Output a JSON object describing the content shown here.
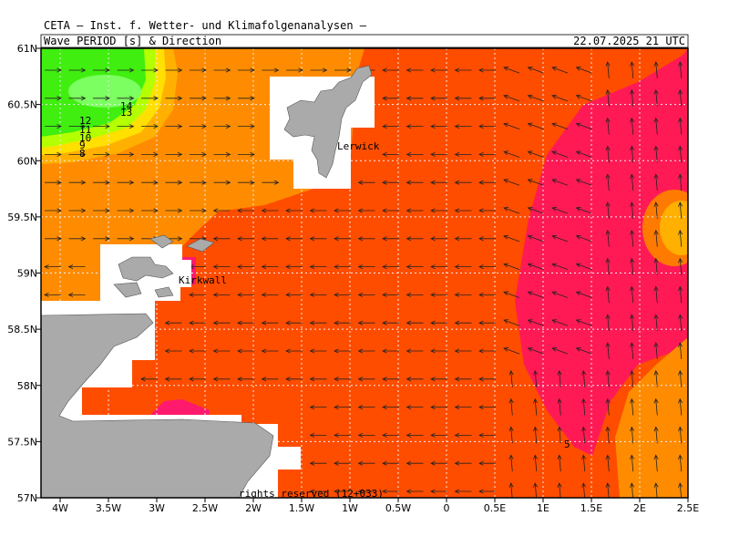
{
  "header": {
    "title": "CETA — Inst. f. Wetter- und Klimafolgenanalysen —",
    "subtitle": "Wave PERIOD [s] & Direction",
    "date": "22.07.2025 21 UTC"
  },
  "axes": {
    "lat_labels": [
      "61N",
      "60.5N",
      "60N",
      "59.5N",
      "59N",
      "58.5N",
      "58N",
      "57.5N",
      "57N"
    ],
    "lon_labels": [
      "4W",
      "3.5W",
      "3W",
      "2.5W",
      "2W",
      "1.5W",
      "1W",
      "0.5W",
      "0",
      "0.5E",
      "1E",
      "1.5E",
      "2E",
      "2.5E"
    ]
  },
  "contour_labels": [
    "14",
    "13",
    "12",
    "11",
    "10",
    "9",
    "8",
    "5"
  ],
  "places": [
    "Lerwick",
    "Kirkwall"
  ],
  "footer": "rights reserved (12+033)"
}
